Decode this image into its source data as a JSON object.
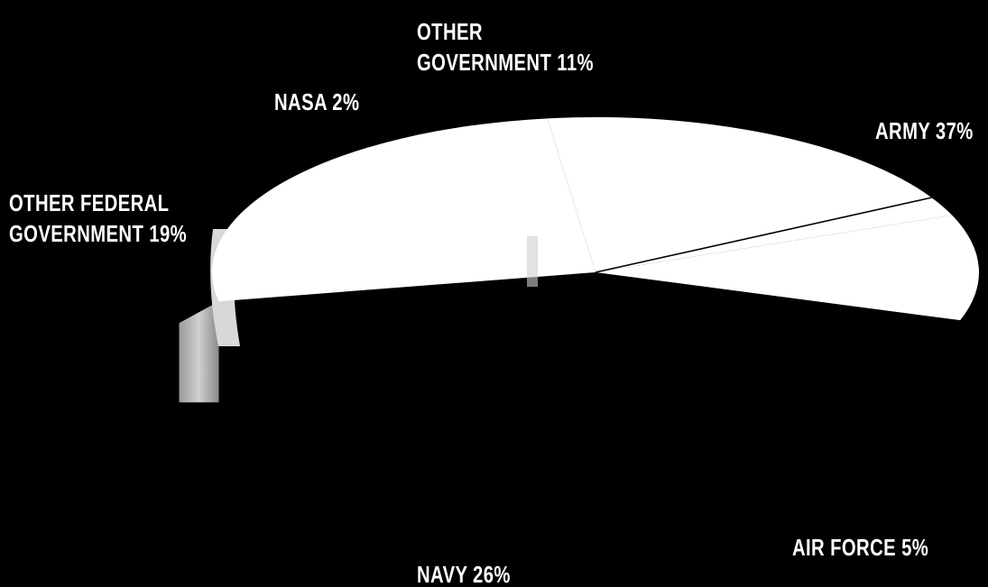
{
  "chart_data": {
    "type": "pie",
    "slices": [
      {
        "label": "ARMY",
        "value": 37,
        "label_text": "ARMY 37%"
      },
      {
        "label": "AIR FORCE",
        "value": 5,
        "label_text": "AIR FORCE 5%"
      },
      {
        "label": "NAVY",
        "value": 26,
        "label_text": "NAVY 26%"
      },
      {
        "label": "OTHER FEDERAL GOVERNMENT",
        "value": 19,
        "label_lines": [
          "OTHER FEDERAL",
          "GOVERNMENT 19%"
        ]
      },
      {
        "label": "NASA",
        "value": 2,
        "label_text": "NASA 2%"
      },
      {
        "label": "OTHER GOVERNMENT",
        "value": 11,
        "label_lines": [
          "OTHER",
          "GOVERNMENT 11%"
        ]
      }
    ],
    "colors": {
      "background": "#000000",
      "slice_fill": "#ffffff",
      "slice_edge": "#bdbdbd",
      "divider": "#000000",
      "label": "#ffffff"
    }
  }
}
